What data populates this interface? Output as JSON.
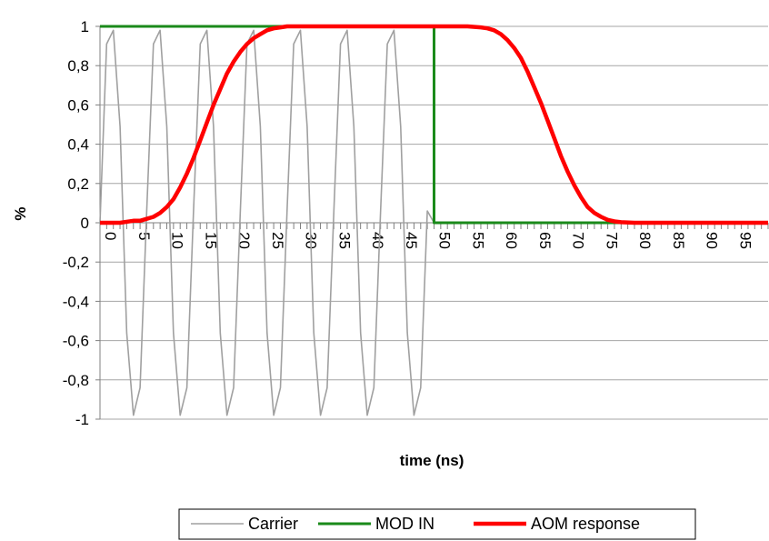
{
  "chart_data": {
    "type": "line",
    "title": "",
    "xlabel": "time (ns)",
    "ylabel": "%",
    "xlim": [
      0,
      100
    ],
    "ylim": [
      -1,
      1
    ],
    "y_ticks": [
      "1",
      "0,8",
      "0,6",
      "0,4",
      "0,2",
      "0",
      "-0,2",
      "-0,4",
      "-0,6",
      "-0,8",
      "-1"
    ],
    "y_tick_values": [
      1,
      0.8,
      0.6,
      0.4,
      0.2,
      0,
      -0.2,
      -0.4,
      -0.6,
      -0.8,
      -1
    ],
    "x_ticks": [
      "0",
      "5",
      "10",
      "15",
      "20",
      "25",
      "30",
      "35",
      "40",
      "45",
      "50",
      "55",
      "60",
      "65",
      "70",
      "75",
      "80",
      "85",
      "90",
      "95"
    ],
    "x_tick_values": [
      0,
      5,
      10,
      15,
      20,
      25,
      30,
      35,
      40,
      45,
      50,
      55,
      60,
      65,
      70,
      75,
      80,
      85,
      90,
      95
    ],
    "grid": "horizontal",
    "legend_position": "bottom",
    "series": [
      {
        "name": "Carrier",
        "color": "#a0a0a0",
        "x": [
          0,
          1,
          2,
          3,
          4,
          5,
          6,
          7,
          8,
          9,
          10,
          11,
          12,
          13,
          14,
          15,
          16,
          17,
          18,
          19,
          20,
          21,
          22,
          23,
          24,
          25,
          26,
          27,
          28,
          29,
          30,
          31,
          32,
          33,
          34,
          35,
          36,
          37,
          38,
          39,
          40,
          41,
          42,
          43,
          44,
          45,
          46,
          47,
          48,
          49,
          50
        ],
        "y": [
          0,
          0.91,
          0.98,
          0.49,
          -0.56,
          -0.98,
          -0.84,
          0.06,
          0.91,
          0.98,
          0.49,
          -0.56,
          -0.98,
          -0.84,
          0.06,
          0.91,
          0.98,
          0.49,
          -0.56,
          -0.98,
          -0.84,
          0.06,
          0.91,
          0.98,
          0.49,
          -0.56,
          -0.98,
          -0.84,
          0.06,
          0.91,
          0.98,
          0.49,
          -0.56,
          -0.98,
          -0.84,
          0.06,
          0.91,
          0.98,
          0.49,
          -0.56,
          -0.98,
          -0.84,
          0.06,
          0.91,
          0.98,
          0.49,
          -0.56,
          -0.98,
          -0.84,
          0.06,
          0
        ]
      },
      {
        "name": "MOD IN",
        "color": "#1a8a1a",
        "x": [
          0,
          50,
          50,
          100
        ],
        "y": [
          1,
          1,
          0,
          0
        ]
      },
      {
        "name": "AOM response",
        "color": "#ff0000",
        "x": [
          0,
          3,
          5,
          6,
          7,
          8,
          9,
          10,
          11,
          12,
          13,
          14,
          15,
          16,
          17,
          18,
          19,
          20,
          21,
          22,
          23,
          24,
          25,
          26,
          27,
          28,
          30,
          40,
          50,
          55,
          57,
          58,
          59,
          60,
          61,
          62,
          63,
          64,
          65,
          66,
          67,
          68,
          69,
          70,
          71,
          72,
          73,
          74,
          75,
          76,
          77,
          78,
          80,
          85,
          100
        ],
        "y": [
          0,
          0,
          0.01,
          0.01,
          0.02,
          0.03,
          0.05,
          0.08,
          0.12,
          0.18,
          0.25,
          0.33,
          0.42,
          0.51,
          0.6,
          0.68,
          0.76,
          0.82,
          0.87,
          0.91,
          0.94,
          0.96,
          0.98,
          0.99,
          0.995,
          1,
          1,
          1,
          1,
          1,
          0.995,
          0.99,
          0.98,
          0.96,
          0.93,
          0.89,
          0.84,
          0.77,
          0.69,
          0.61,
          0.52,
          0.43,
          0.34,
          0.26,
          0.19,
          0.13,
          0.08,
          0.05,
          0.03,
          0.015,
          0.007,
          0.003,
          0,
          0,
          0
        ]
      }
    ]
  }
}
